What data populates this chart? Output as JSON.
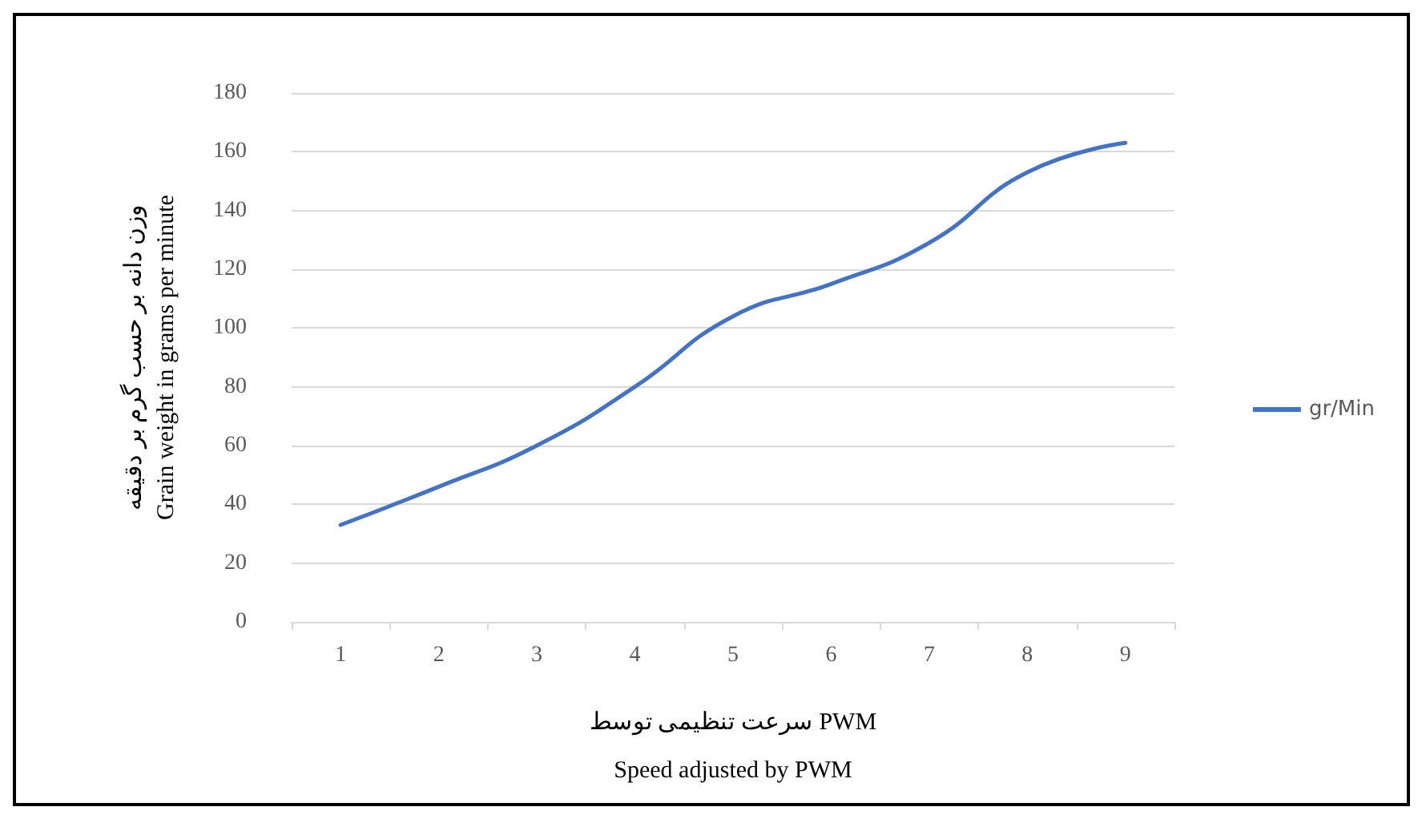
{
  "chart_data": {
    "type": "line",
    "xlabel": "سرعت تنظیمی توسط PWM\nSpeed adjusted by PWM",
    "ylabel": "وزن دانه بر حسب گرم بر دقیقه\nGrain weight in grams per minute",
    "categories": [
      "1",
      "2",
      "3",
      "4",
      "5",
      "6",
      "7",
      "8",
      "9"
    ],
    "series": [
      {
        "name": "gr/Min",
        "color": "#4472c4",
        "values": [
          33,
          46,
          60,
          80,
          104,
          115,
          129,
          153,
          163
        ]
      }
    ],
    "ylim": [
      0,
      180
    ],
    "yticks": [
      0,
      20,
      40,
      60,
      80,
      100,
      120,
      140,
      160,
      180
    ],
    "grid": "y",
    "legend": "right",
    "marker": "none",
    "line_style": "solid"
  }
}
